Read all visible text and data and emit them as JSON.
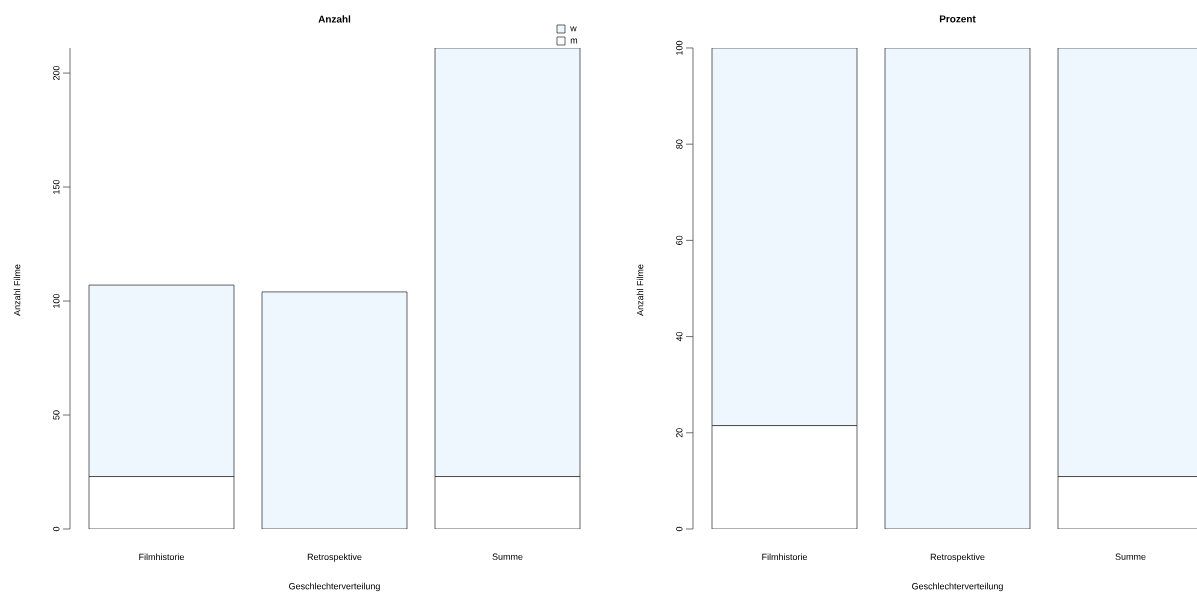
{
  "chart_data": [
    {
      "type": "bar",
      "stacked": true,
      "title": "Anzahl",
      "xlabel": "Geschlechterverteilung",
      "ylabel": "Anzahl Filme",
      "categories": [
        "Filmhistorie",
        "Retrospektive",
        "Summe"
      ],
      "series": [
        {
          "name": "m",
          "color": "#ffffff",
          "values": [
            23,
            0,
            23
          ]
        },
        {
          "name": "w",
          "color": "#eef6fe",
          "values": [
            84,
            104,
            188
          ]
        }
      ],
      "ylim": [
        0,
        211
      ],
      "yticks": [
        0,
        50,
        100,
        150,
        200
      ],
      "legend": "top right"
    },
    {
      "type": "bar",
      "stacked": true,
      "title": "Prozent",
      "xlabel": "Geschlechterverteilung",
      "ylabel": "Anzahl Filme",
      "categories": [
        "Filmhistorie",
        "Retrospektive",
        "Summe"
      ],
      "series": [
        {
          "color": "#ffffff",
          "values": [
            21.5,
            0,
            10.9
          ]
        },
        {
          "color": "#eef6fe",
          "values": [
            78.5,
            100,
            89.1
          ]
        }
      ],
      "ylim": [
        0,
        100
      ],
      "yticks": [
        0,
        20,
        40,
        60,
        80,
        100
      ]
    }
  ]
}
